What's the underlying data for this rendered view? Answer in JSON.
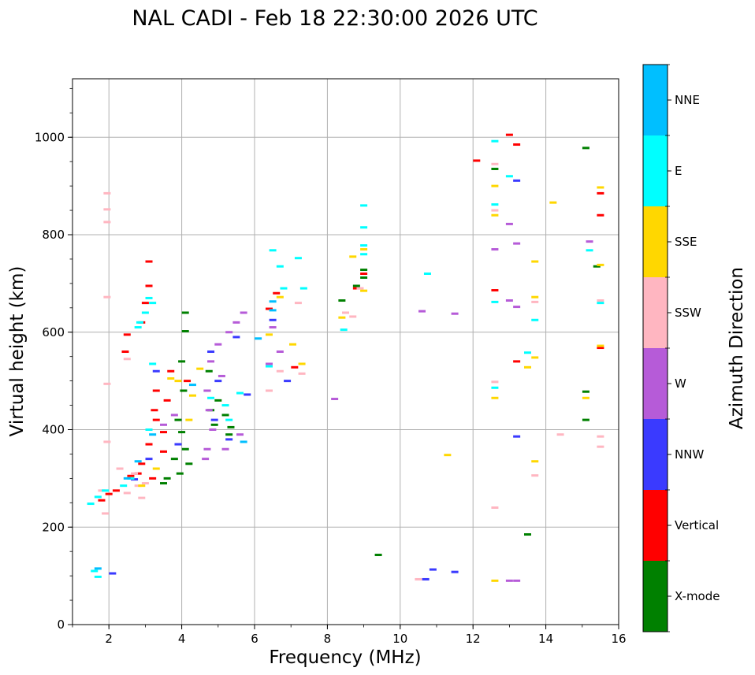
{
  "chart_data": {
    "type": "scatter",
    "title": "NAL CADI - Feb 18 22:30:00 2026 UTC",
    "xlabel": "Frequency (MHz)",
    "ylabel": "Virtual height (km)",
    "xlim": [
      1,
      16
    ],
    "ylim": [
      0,
      1120
    ],
    "xticks": [
      2,
      4,
      6,
      8,
      10,
      12,
      14,
      16
    ],
    "yticks": [
      0,
      200,
      400,
      600,
      800,
      1000
    ],
    "grid": true,
    "colorbar": {
      "label": "Azimuth Direction",
      "categories": [
        "X-mode",
        "Vertical",
        "NNW",
        "W",
        "SSW",
        "SSE",
        "E",
        "NNE"
      ],
      "colors": [
        "#008000",
        "#ff0000",
        "#3a3aff",
        "#b65bd8",
        "#ffb6c1",
        "#ffd700",
        "#00ffff",
        "#00bfff"
      ]
    },
    "series": [
      {
        "name": "X-mode",
        "points": [
          [
            4.1,
            640
          ],
          [
            4.1,
            602
          ],
          [
            4.0,
            540
          ],
          [
            4.05,
            480
          ],
          [
            3.9,
            420
          ],
          [
            4.0,
            395
          ],
          [
            4.1,
            360
          ],
          [
            3.8,
            340
          ],
          [
            4.2,
            330
          ],
          [
            3.95,
            310
          ],
          [
            3.6,
            300
          ],
          [
            3.5,
            290
          ],
          [
            4.7,
            480
          ],
          [
            4.8,
            440
          ],
          [
            4.9,
            410
          ],
          [
            5.0,
            460
          ],
          [
            5.2,
            430
          ],
          [
            5.3,
            390
          ],
          [
            4.75,
            520
          ],
          [
            5.35,
            405
          ],
          [
            8.4,
            665
          ],
          [
            8.8,
            695
          ],
          [
            9.0,
            728
          ],
          [
            9.0,
            712
          ],
          [
            9.4,
            143
          ],
          [
            12.6,
            935
          ],
          [
            13.5,
            185
          ],
          [
            15.1,
            978
          ],
          [
            15.1,
            478
          ],
          [
            15.1,
            420
          ],
          [
            15.4,
            735
          ]
        ]
      },
      {
        "name": "Vertical",
        "points": [
          [
            3.1,
            745
          ],
          [
            3.1,
            695
          ],
          [
            3.0,
            660
          ],
          [
            2.9,
            620
          ],
          [
            2.5,
            595
          ],
          [
            2.45,
            560
          ],
          [
            3.3,
            480
          ],
          [
            3.6,
            460
          ],
          [
            3.3,
            420
          ],
          [
            3.1,
            370
          ],
          [
            3.5,
            355
          ],
          [
            2.9,
            330
          ],
          [
            2.6,
            305
          ],
          [
            3.2,
            300
          ],
          [
            2.2,
            275
          ],
          [
            2.0,
            268
          ],
          [
            1.8,
            255
          ],
          [
            3.7,
            520
          ],
          [
            3.25,
            440
          ],
          [
            3.5,
            395
          ],
          [
            2.8,
            310
          ],
          [
            4.15,
            500
          ],
          [
            6.6,
            680
          ],
          [
            6.4,
            648
          ],
          [
            7.1,
            528
          ],
          [
            8.8,
            690
          ],
          [
            9.0,
            720
          ],
          [
            12.1,
            952
          ],
          [
            13.0,
            1005
          ],
          [
            13.2,
            985
          ],
          [
            12.6,
            686
          ],
          [
            13.2,
            540
          ],
          [
            15.5,
            885
          ],
          [
            15.5,
            840
          ],
          [
            15.5,
            568
          ]
        ]
      },
      {
        "name": "NNW",
        "points": [
          [
            4.8,
            560
          ],
          [
            5.0,
            500
          ],
          [
            5.5,
            590
          ],
          [
            5.8,
            472
          ],
          [
            4.9,
            420
          ],
          [
            5.3,
            380
          ],
          [
            3.3,
            520
          ],
          [
            3.9,
            370
          ],
          [
            3.1,
            340
          ],
          [
            2.7,
            298
          ],
          [
            6.5,
            625
          ],
          [
            6.9,
            500
          ],
          [
            10.7,
            93
          ],
          [
            10.9,
            113
          ],
          [
            11.5,
            108
          ],
          [
            13.2,
            911
          ],
          [
            13.2,
            386
          ],
          [
            2.1,
            105
          ]
        ]
      },
      {
        "name": "W",
        "points": [
          [
            5.7,
            640
          ],
          [
            5.5,
            620
          ],
          [
            5.3,
            600
          ],
          [
            5.0,
            575
          ],
          [
            4.8,
            540
          ],
          [
            5.1,
            510
          ],
          [
            4.7,
            480
          ],
          [
            4.75,
            440
          ],
          [
            4.85,
            400
          ],
          [
            4.7,
            360
          ],
          [
            5.2,
            360
          ],
          [
            4.65,
            340
          ],
          [
            5.6,
            390
          ],
          [
            3.8,
            430
          ],
          [
            3.5,
            410
          ],
          [
            6.5,
            610
          ],
          [
            6.7,
            560
          ],
          [
            6.4,
            535
          ],
          [
            8.2,
            463
          ],
          [
            10.6,
            643
          ],
          [
            11.5,
            638
          ],
          [
            12.6,
            770
          ],
          [
            13.0,
            822
          ],
          [
            13.2,
            782
          ],
          [
            13.2,
            652
          ],
          [
            13.0,
            665
          ],
          [
            13.0,
            90
          ],
          [
            13.2,
            90
          ],
          [
            15.2,
            786
          ]
        ]
      },
      {
        "name": "SSW",
        "points": [
          [
            1.95,
            885
          ],
          [
            1.95,
            852
          ],
          [
            1.95,
            826
          ],
          [
            1.95,
            672
          ],
          [
            1.95,
            494
          ],
          [
            1.95,
            375
          ],
          [
            1.9,
            228
          ],
          [
            2.5,
            545
          ],
          [
            2.3,
            320
          ],
          [
            2.8,
            285
          ],
          [
            3.0,
            290
          ],
          [
            2.5,
            270
          ],
          [
            2.7,
            310
          ],
          [
            2.9,
            260
          ],
          [
            1.8,
            275
          ],
          [
            6.4,
            480
          ],
          [
            6.7,
            520
          ],
          [
            7.2,
            660
          ],
          [
            7.3,
            515
          ],
          [
            8.5,
            640
          ],
          [
            8.7,
            632
          ],
          [
            8.9,
            690
          ],
          [
            10.5,
            93
          ],
          [
            12.6,
            945
          ],
          [
            12.6,
            850
          ],
          [
            12.6,
            498
          ],
          [
            12.6,
            240
          ],
          [
            13.7,
            662
          ],
          [
            13.7,
            306
          ],
          [
            14.4,
            390
          ],
          [
            15.5,
            665
          ],
          [
            15.5,
            386
          ],
          [
            15.5,
            365
          ]
        ]
      },
      {
        "name": "SSE",
        "points": [
          [
            2.6,
            300
          ],
          [
            2.9,
            285
          ],
          [
            3.3,
            320
          ],
          [
            3.9,
            500
          ],
          [
            4.3,
            470
          ],
          [
            4.5,
            525
          ],
          [
            3.7,
            505
          ],
          [
            4.2,
            420
          ],
          [
            6.4,
            595
          ],
          [
            6.7,
            672
          ],
          [
            7.05,
            575
          ],
          [
            7.3,
            535
          ],
          [
            8.4,
            630
          ],
          [
            8.7,
            755
          ],
          [
            9.0,
            770
          ],
          [
            9.0,
            685
          ],
          [
            11.3,
            348
          ],
          [
            12.6,
            900
          ],
          [
            12.6,
            840
          ],
          [
            12.6,
            465
          ],
          [
            12.6,
            90
          ],
          [
            13.7,
            745
          ],
          [
            13.7,
            672
          ],
          [
            13.7,
            548
          ],
          [
            13.5,
            528
          ],
          [
            13.7,
            335
          ],
          [
            14.2,
            866
          ],
          [
            15.1,
            465
          ],
          [
            15.5,
            897
          ],
          [
            15.5,
            738
          ],
          [
            15.5,
            572
          ]
        ]
      },
      {
        "name": "E",
        "points": [
          [
            2.8,
            610
          ],
          [
            2.85,
            620
          ],
          [
            3.1,
            670
          ],
          [
            3.0,
            640
          ],
          [
            3.2,
            660
          ],
          [
            2.6,
            300
          ],
          [
            2.4,
            285
          ],
          [
            1.9,
            275
          ],
          [
            1.7,
            262
          ],
          [
            1.5,
            248
          ],
          [
            3.2,
            535
          ],
          [
            3.1,
            400
          ],
          [
            4.8,
            465
          ],
          [
            5.3,
            420
          ],
          [
            5.2,
            450
          ],
          [
            5.6,
            475
          ],
          [
            6.5,
            768
          ],
          [
            6.7,
            735
          ],
          [
            6.8,
            690
          ],
          [
            7.2,
            752
          ],
          [
            7.35,
            690
          ],
          [
            6.4,
            530
          ],
          [
            8.45,
            605
          ],
          [
            9.0,
            860
          ],
          [
            9.0,
            815
          ],
          [
            9.0,
            778
          ],
          [
            9.0,
            760
          ],
          [
            10.75,
            720
          ],
          [
            12.6,
            992
          ],
          [
            12.6,
            862
          ],
          [
            12.6,
            662
          ],
          [
            12.6,
            486
          ],
          [
            13.0,
            920
          ],
          [
            13.7,
            625
          ],
          [
            13.5,
            558
          ],
          [
            15.2,
            768
          ],
          [
            15.5,
            660
          ],
          [
            1.6,
            110
          ],
          [
            1.7,
            98
          ]
        ]
      },
      {
        "name": "NNE",
        "points": [
          [
            6.5,
            645
          ],
          [
            3.2,
            390
          ],
          [
            2.8,
            335
          ],
          [
            2.5,
            300
          ],
          [
            4.3,
            492
          ],
          [
            6.1,
            587
          ],
          [
            5.7,
            375
          ],
          [
            6.5,
            663
          ],
          [
            1.7,
            115
          ]
        ]
      }
    ]
  }
}
